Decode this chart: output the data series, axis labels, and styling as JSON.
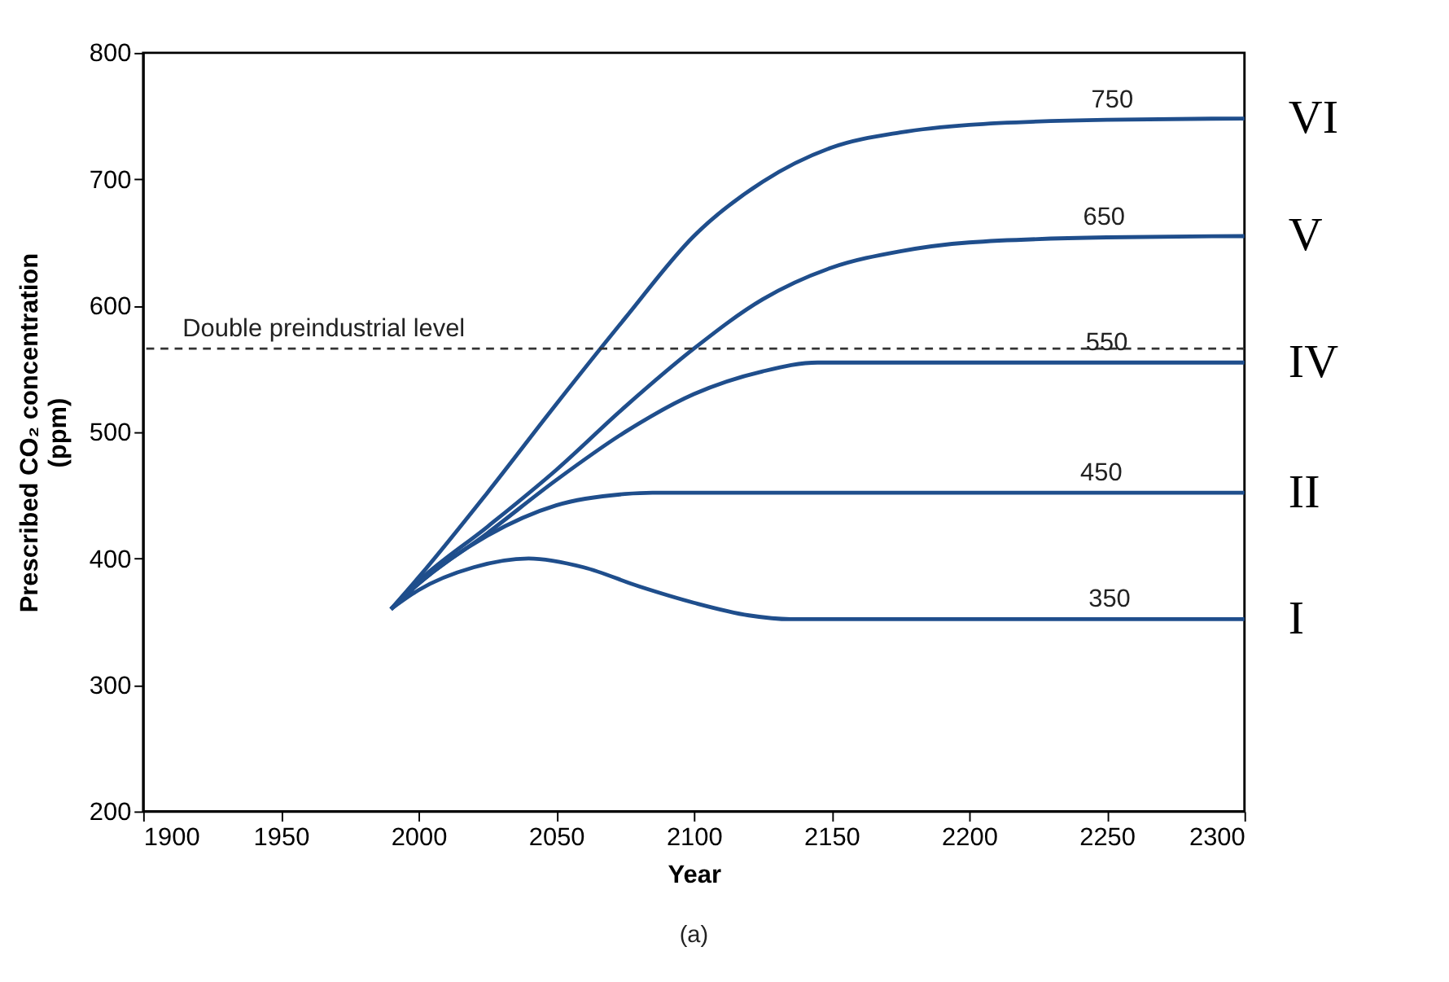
{
  "chart_data": {
    "type": "line",
    "xlabel": "Year",
    "ylabel": "Prescribed CO₂ concentration\n(ppm)",
    "xlim": [
      1900,
      2300
    ],
    "xticks": [
      1900,
      1950,
      2000,
      2050,
      2100,
      2150,
      2200,
      2250,
      2300
    ],
    "ylim": [
      200,
      800
    ],
    "yticks": [
      200,
      300,
      400,
      500,
      600,
      700,
      800
    ],
    "grid": false,
    "legend": false,
    "marker": "none",
    "line_style": "solid",
    "series": [
      {
        "name": "VI",
        "color": "#1f4e8c",
        "x": [
          1990,
          2000,
          2025,
          2050,
          2075,
          2100,
          2125,
          2150,
          2175,
          2200,
          2250,
          2300
        ],
        "values": [
          360,
          385,
          452,
          522,
          590,
          655,
          698,
          725,
          737,
          743,
          747,
          748
        ]
      },
      {
        "name": "V",
        "color": "#1f4e8c",
        "x": [
          1990,
          2000,
          2025,
          2050,
          2075,
          2100,
          2125,
          2150,
          2175,
          2200,
          2250,
          2300
        ],
        "values": [
          360,
          382,
          425,
          470,
          520,
          566,
          605,
          630,
          643,
          650,
          654,
          655
        ]
      },
      {
        "name": "IV",
        "color": "#1f4e8c",
        "x": [
          1990,
          2000,
          2025,
          2050,
          2075,
          2100,
          2125,
          2145,
          2300
        ],
        "values": [
          360,
          380,
          420,
          462,
          500,
          530,
          548,
          555,
          555
        ]
      },
      {
        "name": "II",
        "color": "#1f4e8c",
        "x": [
          1990,
          2000,
          2025,
          2050,
          2075,
          2085,
          2300
        ],
        "values": [
          360,
          380,
          418,
          442,
          451,
          452,
          452
        ]
      },
      {
        "name": "I",
        "color": "#1f4e8c",
        "x": [
          1990,
          2000,
          2020,
          2040,
          2060,
          2080,
          2100,
          2120,
          2135,
          2300
        ],
        "values": [
          360,
          375,
          393,
          400,
          393,
          378,
          365,
          355,
          352,
          352
        ]
      }
    ],
    "ref_lines": [
      {
        "axis": "y",
        "value": 566,
        "label": "Double preindustrial level",
        "color": "#333333",
        "line_style": "dashed"
      }
    ],
    "annotations": [
      {
        "text": "750",
        "x": 2252,
        "y": 747
      },
      {
        "text": "650",
        "x": 2249,
        "y": 654
      },
      {
        "text": "550",
        "x": 2250,
        "y": 555
      },
      {
        "text": "450",
        "x": 2248,
        "y": 452
      },
      {
        "text": "350",
        "x": 2251,
        "y": 352
      },
      "(a)"
    ]
  }
}
